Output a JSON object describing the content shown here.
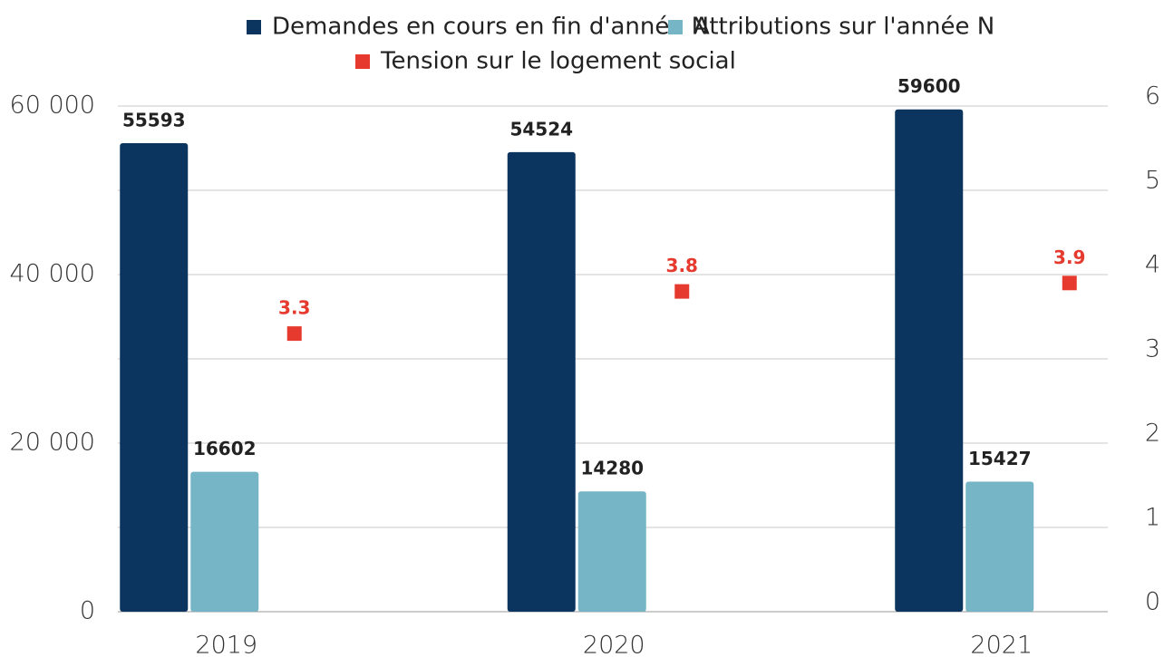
{
  "chart_data": {
    "type": "bar",
    "categories": [
      "2019",
      "2020",
      "2021"
    ],
    "series": [
      {
        "name": "Demandes en cours en fin d'année N",
        "color": "#0b355f",
        "values": [
          55593,
          54524,
          59600
        ]
      },
      {
        "name": "Attributions sur l'année N",
        "color": "#76b5c6",
        "values": [
          16602,
          14280,
          15427
        ]
      },
      {
        "name": "Tension sur le logement social",
        "color": "#e63a2e",
        "values": [
          3.3,
          3.8,
          3.9
        ],
        "axis": "y2",
        "type": "scatter"
      }
    ],
    "ylim": [
      0,
      60000
    ],
    "yticks": [
      {
        "value": 0,
        "label": "0"
      },
      {
        "value": 20000,
        "label": "20 000"
      },
      {
        "value": 40000,
        "label": "40 000"
      },
      {
        "value": 60000,
        "label": "60 000"
      }
    ],
    "y2lim": [
      0,
      6
    ],
    "y2ticks": [
      0,
      1,
      2,
      3,
      4,
      5,
      6
    ],
    "grid": true,
    "legend": "top"
  }
}
